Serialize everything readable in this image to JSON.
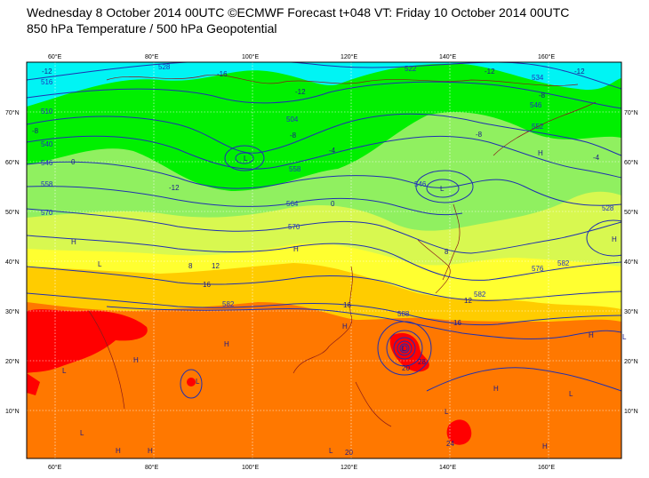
{
  "header": {
    "line1": "Wednesday 8 October 2014 00UTC ©ECMWF Forecast t+048 VT: Friday 10 October 2014 00UTC",
    "line2": "850 hPa Temperature / 500 hPa Geopotential"
  },
  "colors": {
    "cyan": "#00f4f4",
    "green": "#00f000",
    "lightgreen": "#90f060",
    "yellowgreen": "#d8f850",
    "yellow": "#ffff30",
    "gold": "#ffcc00",
    "orange": "#ff7800",
    "red": "#ff0000",
    "contour": "#2030b0"
  },
  "axes": {
    "lon_ticks": [
      "60°E",
      "80°E",
      "100°E",
      "120°E",
      "140°E",
      "160°E"
    ],
    "lat_ticks": [
      "70°N",
      "60°N",
      "50°N",
      "40°N",
      "30°N",
      "20°N",
      "10°N"
    ]
  },
  "geopotential_labels": [
    "528",
    "516",
    "522",
    "534",
    "546",
    "504",
    "552",
    "540",
    "546",
    "558",
    "546",
    "570",
    "570",
    "582",
    "588",
    "582",
    "564",
    "576",
    "528",
    "582",
    "558",
    "510"
  ],
  "temperature_labels": [
    "-12",
    "-16",
    "-12",
    "-8",
    "-12",
    "-8",
    "-12",
    "-8",
    "-4",
    "-4",
    "0",
    "0",
    "-12",
    "-8",
    "8",
    "12",
    "16",
    "16",
    "16",
    "12",
    "20",
    "24",
    "20",
    "28",
    "8"
  ],
  "pressure_centers": [
    "L",
    "H",
    "H",
    "H",
    "L",
    "H",
    "H",
    "L",
    "L",
    "H",
    "L",
    "H",
    "H",
    "L",
    "H",
    "L",
    "H",
    "L",
    "H",
    "L",
    "L",
    "H",
    "L"
  ]
}
